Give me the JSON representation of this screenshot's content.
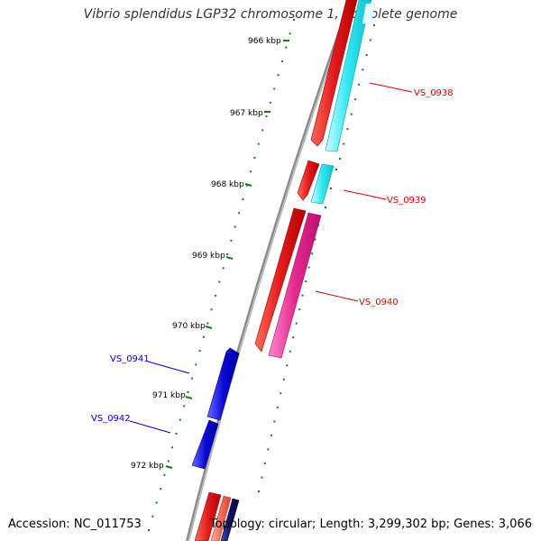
{
  "title": "Vibrio splendidus LGP32 chromosome 1, complete genome",
  "footer": {
    "accession": "Accession: NC_011753",
    "summary": "Topology: circular; Length: 3,299,302 bp; Genes: 3,066"
  },
  "colors": {
    "backbone": "#8c8c8c",
    "tick": "#1a7a1a",
    "red": "#e31a1c",
    "cyan": "#1ee4ee",
    "magenta": "#e6298f",
    "blue": "#0a0ad8",
    "salmon": "#f46d5a",
    "navy": "#10106e",
    "forward_label": "#dd0000",
    "reverse_label": "#0000cc"
  },
  "ticks": [
    {
      "label": "966 kbp"
    },
    {
      "label": "967 kbp"
    },
    {
      "label": "968 kbp"
    },
    {
      "label": "969 kbp"
    },
    {
      "label": "970 kbp"
    },
    {
      "label": "971 kbp"
    },
    {
      "label": "972 kbp"
    }
  ],
  "genes": [
    {
      "label": "VS_0938",
      "strand": "forward"
    },
    {
      "label": "VS_0939",
      "strand": "forward"
    },
    {
      "label": "VS_0940",
      "strand": "forward"
    },
    {
      "label": "VS_0941",
      "strand": "reverse"
    },
    {
      "label": "VS_0942",
      "strand": "reverse"
    }
  ]
}
